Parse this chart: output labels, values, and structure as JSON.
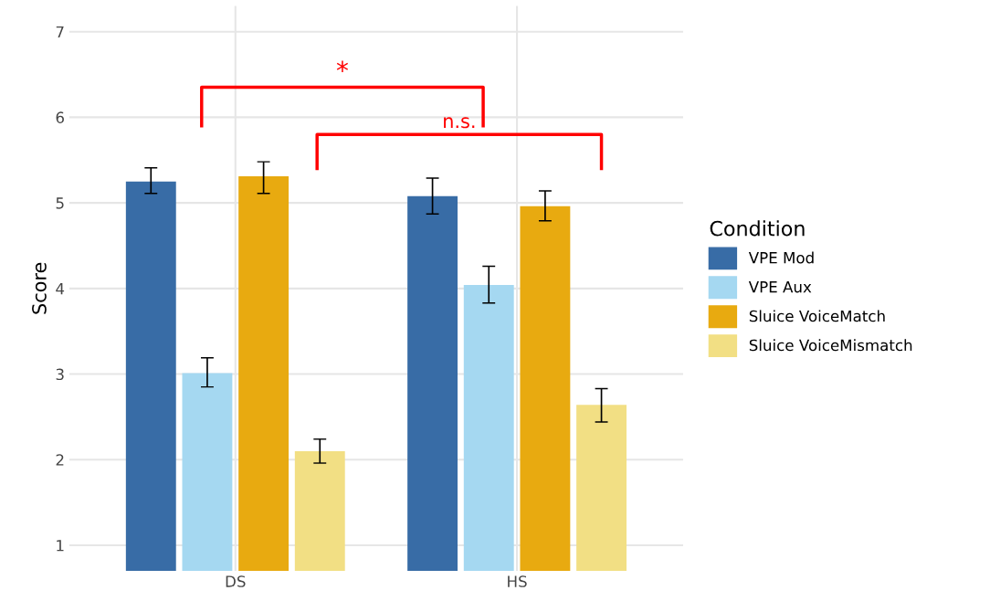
{
  "chart_data": {
    "type": "bar",
    "categories": [
      "DS",
      "HS"
    ],
    "ylabel": "Score",
    "legend_title": "Condition",
    "legend": "right",
    "grid": true,
    "ylim": [
      0.7,
      7.3
    ],
    "yticks": [
      1,
      2,
      3,
      4,
      5,
      6,
      7
    ],
    "series": [
      {
        "name": "VPE Mod",
        "color": "#386ca6",
        "values": [
          5.25,
          5.08
        ],
        "errors": [
          [
            5.11,
            5.41
          ],
          [
            4.87,
            5.29
          ]
        ]
      },
      {
        "name": "VPE Aux",
        "color": "#a5d8f1",
        "values": [
          3.01,
          4.04
        ],
        "errors": [
          [
            2.85,
            3.19
          ],
          [
            3.83,
            4.26
          ]
        ]
      },
      {
        "name": "Sluice VoiceMatch",
        "color": "#e8aa10",
        "values": [
          5.31,
          4.96
        ],
        "errors": [
          [
            5.11,
            5.48
          ],
          [
            4.79,
            5.14
          ]
        ]
      },
      {
        "name": "Sluice VoiceMismatch",
        "color": "#f2df84",
        "values": [
          2.1,
          2.64
        ],
        "errors": [
          [
            1.96,
            2.24
          ],
          [
            2.44,
            2.83
          ]
        ]
      }
    ],
    "annotations": [
      "*",
      "n.s."
    ]
  }
}
